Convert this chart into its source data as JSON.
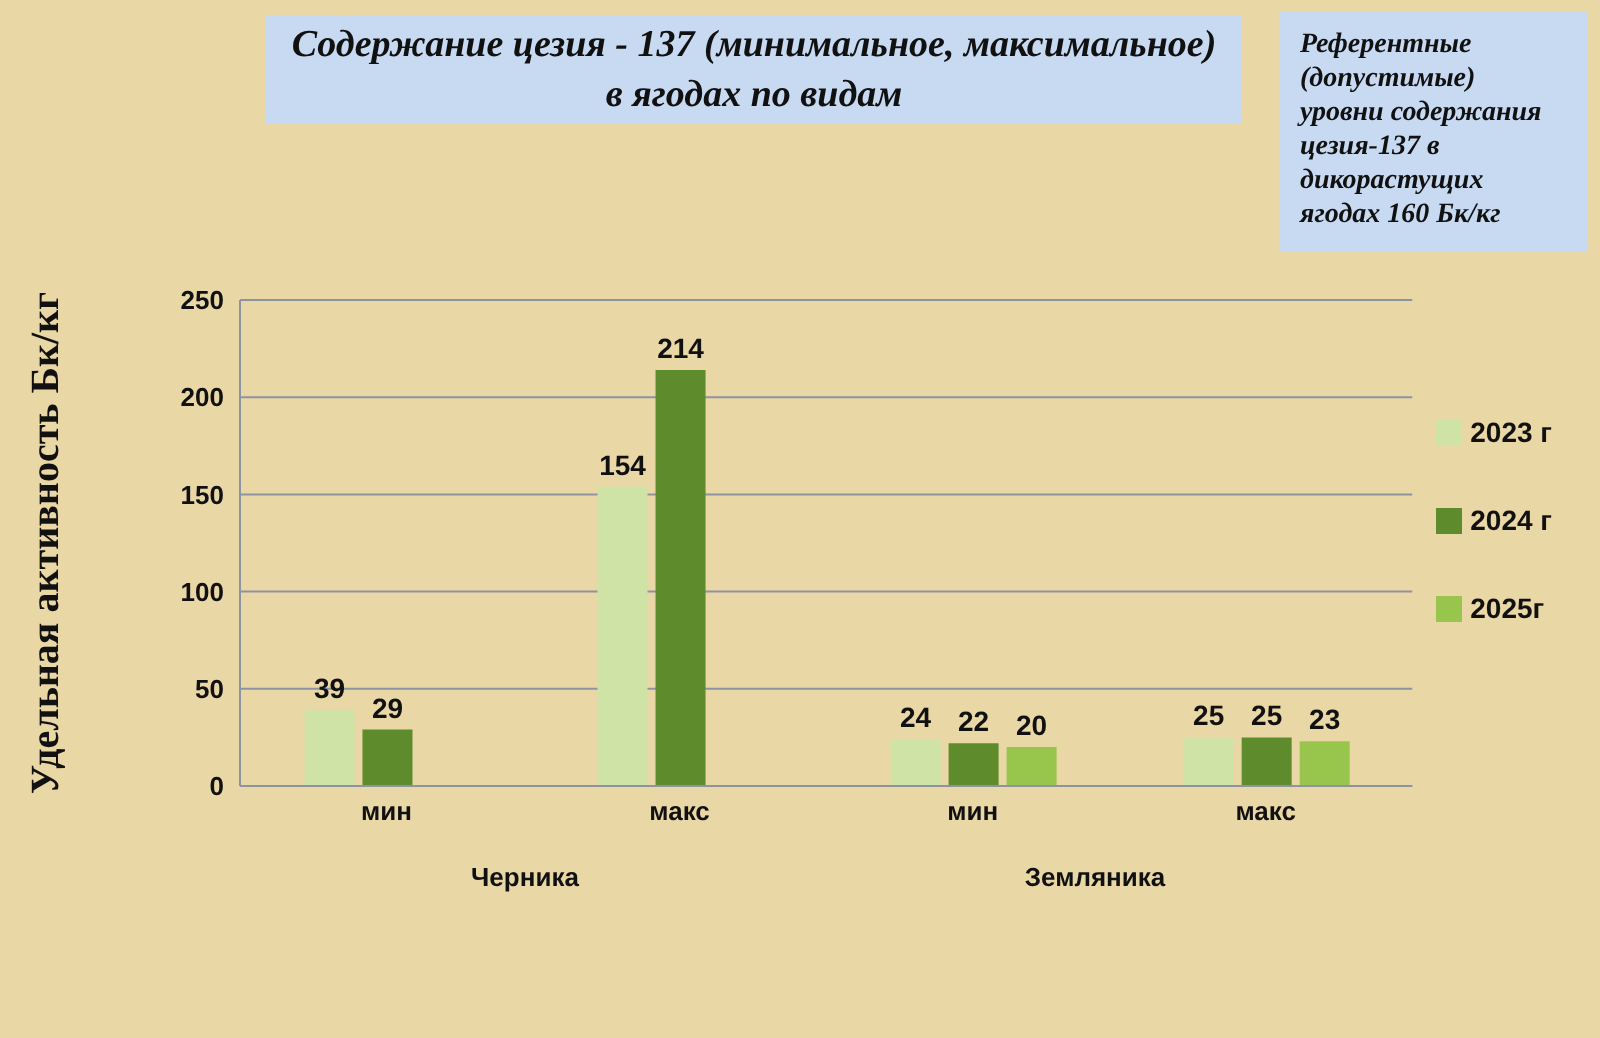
{
  "chart_data": {
    "type": "bar",
    "title": "Содержание цезия - 137 (минимальное, максимальное)\nв ягодах по видам",
    "ylabel": "Удельная активность Бк/кг",
    "categories": [
      "мин",
      "макс",
      "мин",
      "макс"
    ],
    "series": [
      {
        "name": "2023 г",
        "color": "#cfe3a6",
        "values": [
          39,
          154,
          24,
          25
        ]
      },
      {
        "name": "2024 г",
        "color": "#5e8b2c",
        "values": [
          29,
          214,
          22,
          25
        ]
      },
      {
        "name": "2025г",
        "color": "#98c64c",
        "values": [
          null,
          null,
          20,
          23
        ]
      }
    ],
    "ylim": [
      0,
      250
    ],
    "yticks": [
      0,
      50,
      100,
      150,
      200,
      250
    ],
    "grid": "y",
    "legend": "right",
    "data_labels": true,
    "annotations": [
      "Референтные (допустимые) уровни содержания цезия-137 в дикорастущих ягодах 160 Бк/кг",
      "Черника",
      "Земляника"
    ]
  }
}
